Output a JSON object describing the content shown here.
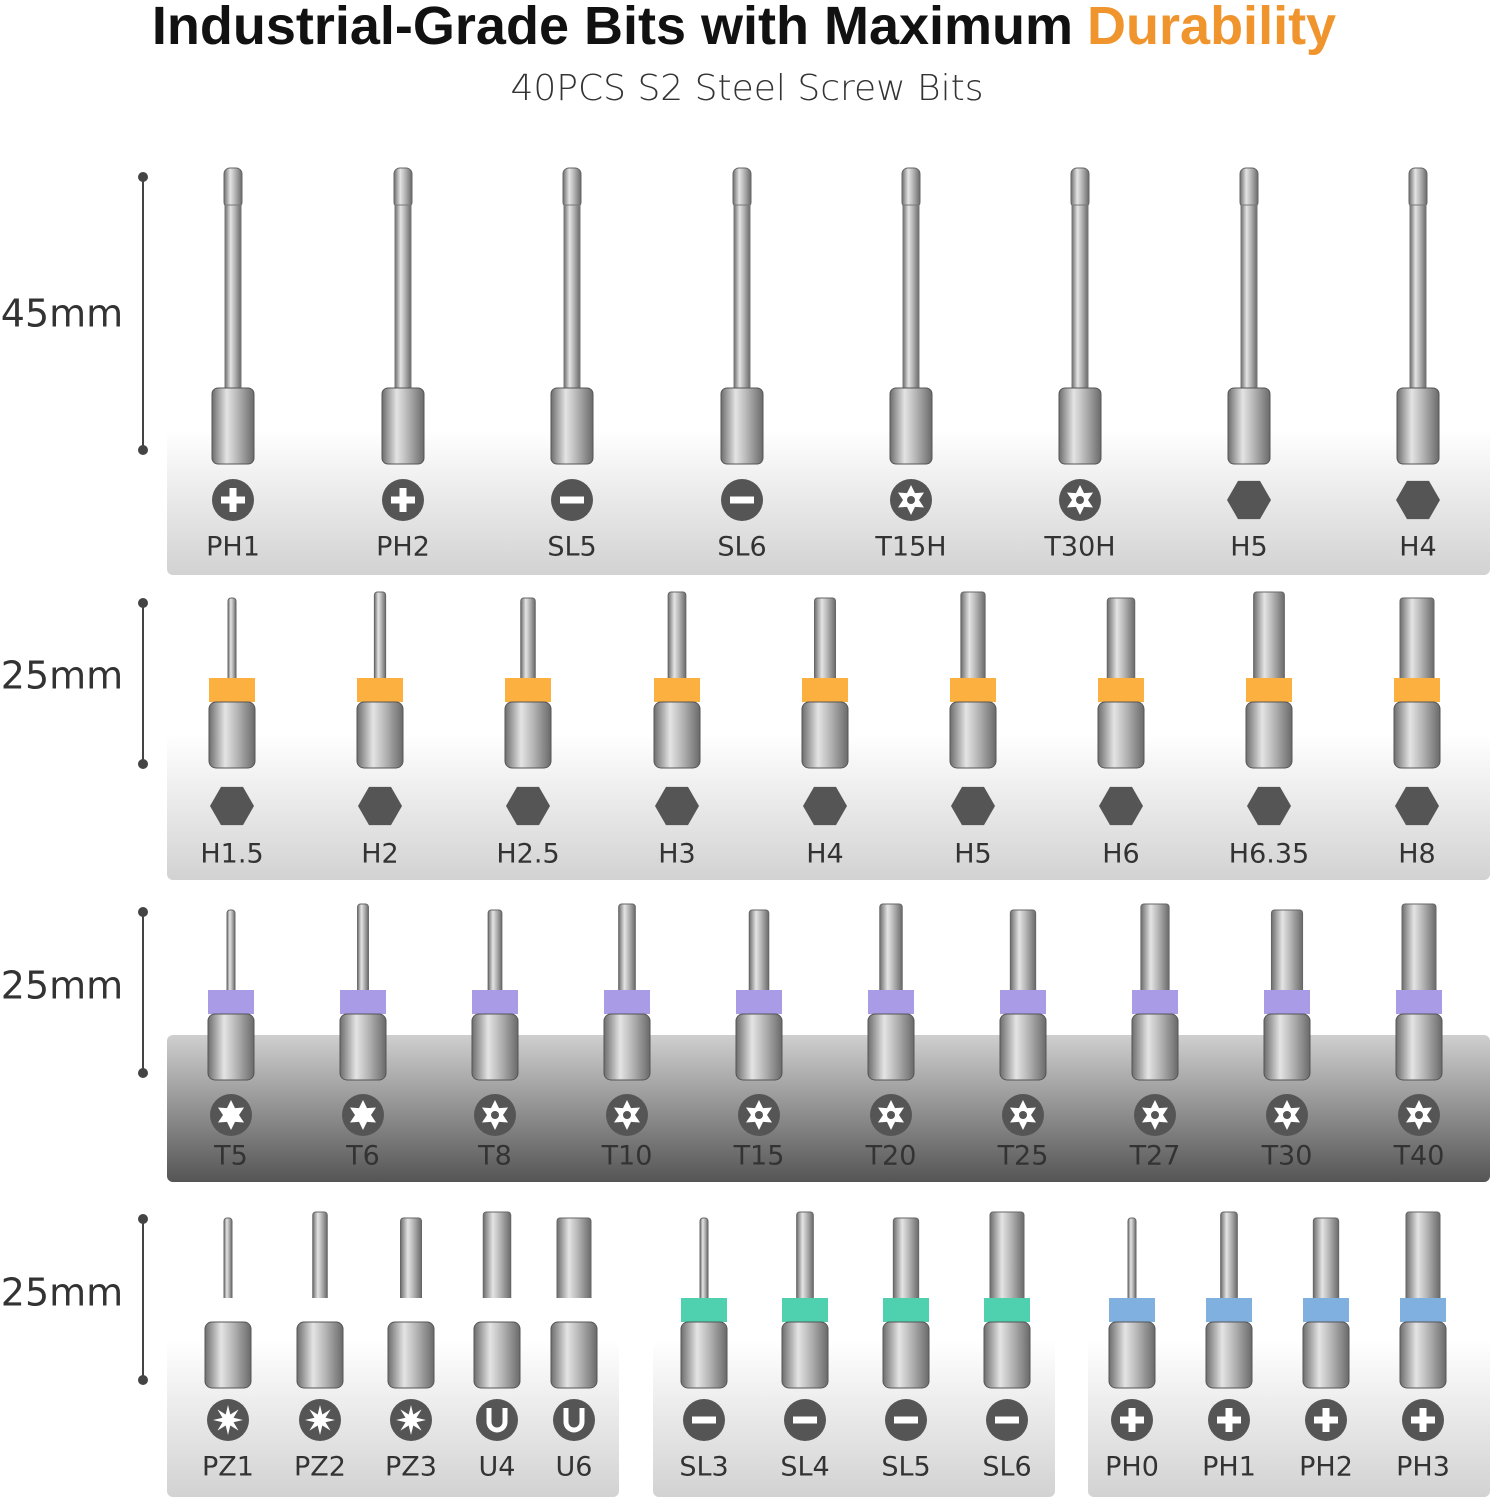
{
  "header": {
    "title": "Industrial-Grade Bits with Maximum",
    "title_highlight": "Durability",
    "subtitle": "40PCS S2 Steel Screw Bits"
  },
  "rows": [
    {
      "length": "45mm",
      "groups": [
        {
          "items": [
            "PH1",
            "PH2",
            "SL5",
            "SL6",
            "T15H",
            "T30H",
            "H5",
            "H4"
          ]
        }
      ]
    },
    {
      "length": "25mm",
      "groups": [
        {
          "items": [
            "H1.5",
            "H2",
            "H2.5",
            "H3",
            "H4",
            "H5",
            "H6",
            "H6.35",
            "H8"
          ]
        }
      ]
    },
    {
      "length": "25mm",
      "groups": [
        {
          "items": [
            "T5",
            "T6",
            "T8",
            "T10",
            "T15",
            "T20",
            "T25",
            "T27",
            "T30",
            "T40"
          ]
        }
      ]
    },
    {
      "length": "25mm",
      "groups": [
        {
          "items": [
            "PZ1",
            "PZ2",
            "PZ3",
            "U4",
            "U6"
          ]
        },
        {
          "items": [
            "SL3",
            "SL4",
            "SL5",
            "SL6"
          ]
        },
        {
          "items": [
            "PH0",
            "PH1",
            "PH2",
            "PH3"
          ]
        }
      ]
    }
  ]
}
